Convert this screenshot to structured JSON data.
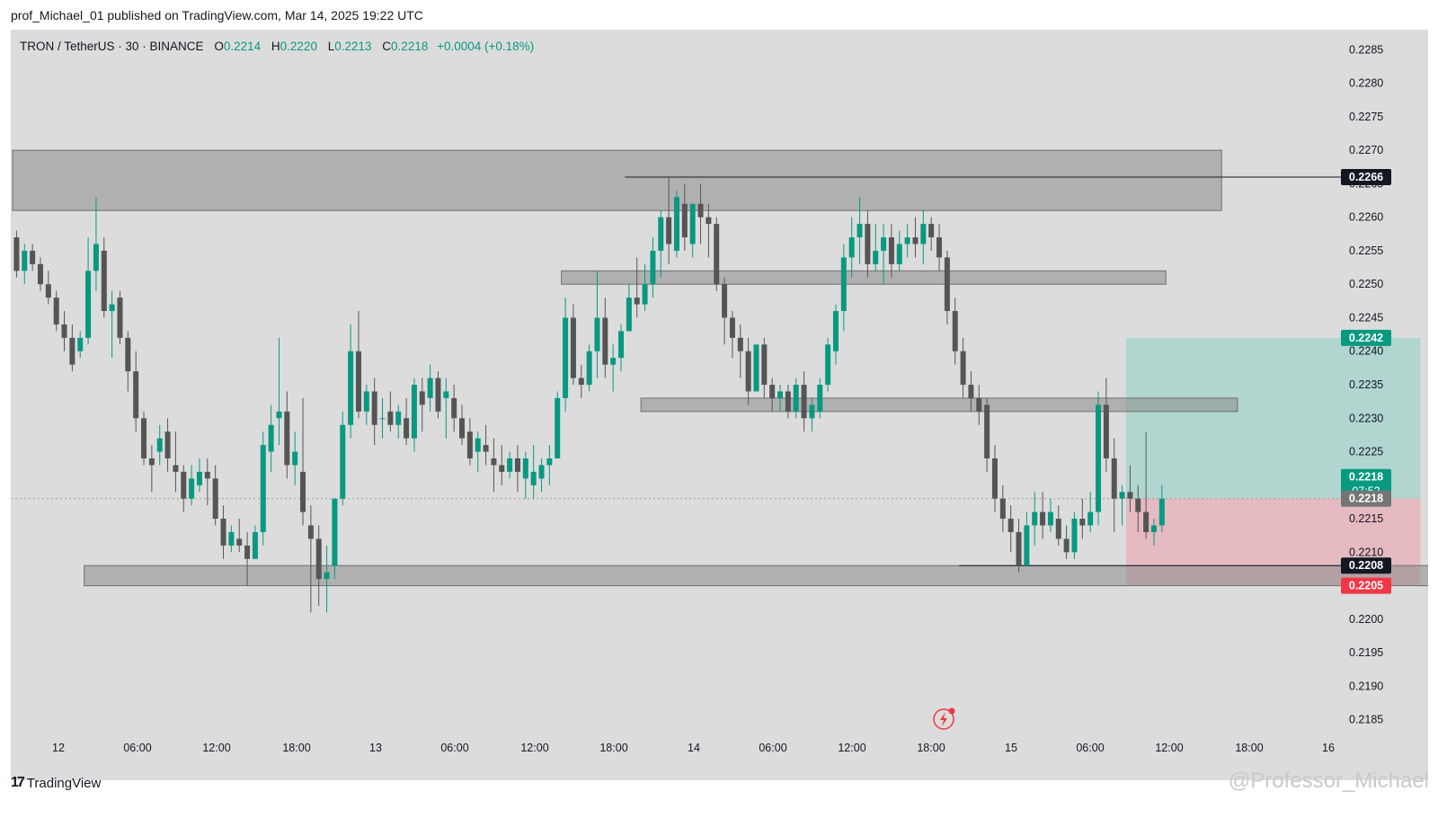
{
  "header": {
    "text": "prof_Michael_01 published on TradingView.com, Mar 14, 2025 19:22 UTC"
  },
  "legend": {
    "symbol": "TRON / TetherUS · 30 · BINANCE",
    "o_label": "O",
    "o": "0.2214",
    "h_label": "H",
    "h": "0.2220",
    "l_label": "L",
    "l": "0.2213",
    "c_label": "C",
    "c": "0.2218",
    "change": "+0.0004 (+0.18%)"
  },
  "footer": {
    "logo_mark": "17",
    "logo_text": "TradingView",
    "watermark": "@Professor_Michael"
  },
  "colors": {
    "up": "#089981",
    "down": "#555555",
    "zone": "#8c8c8c",
    "profit": "#a8d5cc",
    "loss": "#e6b4bb",
    "bg": "#dcdcdc"
  },
  "chart_data": {
    "type": "candlestick",
    "ylim": [
      0.2182,
      0.2288
    ],
    "yticks": [
      "0.2285",
      "0.2280",
      "0.2275",
      "0.2270",
      "0.2265",
      "0.2260",
      "0.2255",
      "0.2250",
      "0.2245",
      "0.2240",
      "0.2235",
      "0.2230",
      "0.2225",
      "0.2220",
      "0.2215",
      "0.2210",
      "0.2205",
      "0.2200",
      "0.2195",
      "0.2190",
      "0.2185"
    ],
    "xticks": [
      "12",
      "06:00",
      "12:00",
      "18:00",
      "13",
      "06:00",
      "12:00",
      "18:00",
      "14",
      "06:00",
      "12:00",
      "18:00",
      "15",
      "06:00",
      "12:00",
      "18:00",
      "16"
    ],
    "bar_interval": "30",
    "candles": [
      [
        0.2257,
        0.2258,
        0.2251,
        0.2252
      ],
      [
        0.2252,
        0.2256,
        0.225,
        0.2255
      ],
      [
        0.2255,
        0.2256,
        0.2252,
        0.2253
      ],
      [
        0.2253,
        0.2254,
        0.2249,
        0.225
      ],
      [
        0.225,
        0.2252,
        0.2247,
        0.2248
      ],
      [
        0.2248,
        0.2249,
        0.2243,
        0.2244
      ],
      [
        0.2244,
        0.2246,
        0.224,
        0.2242
      ],
      [
        0.2242,
        0.2244,
        0.2237,
        0.2238
      ],
      [
        0.224,
        0.2243,
        0.2239,
        0.2242
      ],
      [
        0.2242,
        0.2257,
        0.2241,
        0.2252
      ],
      [
        0.2252,
        0.2263,
        0.2249,
        0.2256
      ],
      [
        0.2255,
        0.2257,
        0.2245,
        0.2246
      ],
      [
        0.2246,
        0.2249,
        0.2239,
        0.2247
      ],
      [
        0.2248,
        0.2249,
        0.2241,
        0.2242
      ],
      [
        0.2242,
        0.2243,
        0.2234,
        0.2237
      ],
      [
        0.2237,
        0.224,
        0.2228,
        0.223
      ],
      [
        0.223,
        0.2231,
        0.2223,
        0.2224
      ],
      [
        0.2224,
        0.2226,
        0.2219,
        0.2223
      ],
      [
        0.2225,
        0.2229,
        0.2223,
        0.2227
      ],
      [
        0.2228,
        0.223,
        0.2222,
        0.2224
      ],
      [
        0.2223,
        0.2228,
        0.2219,
        0.2222
      ],
      [
        0.2222,
        0.2223,
        0.2216,
        0.2218
      ],
      [
        0.2218,
        0.2223,
        0.2217,
        0.2221
      ],
      [
        0.222,
        0.2224,
        0.2219,
        0.2222
      ],
      [
        0.2222,
        0.2224,
        0.2217,
        0.2221
      ],
      [
        0.2221,
        0.2223,
        0.2214,
        0.2215
      ],
      [
        0.2215,
        0.2217,
        0.2209,
        0.2211
      ],
      [
        0.2211,
        0.2214,
        0.221,
        0.2213
      ],
      [
        0.2212,
        0.2215,
        0.221,
        0.2211
      ],
      [
        0.2211,
        0.2213,
        0.2205,
        0.2209
      ],
      [
        0.2209,
        0.2214,
        0.2209,
        0.2213
      ],
      [
        0.2213,
        0.2228,
        0.2211,
        0.2226
      ],
      [
        0.2225,
        0.2232,
        0.2222,
        0.2229
      ],
      [
        0.223,
        0.2242,
        0.2226,
        0.2231
      ],
      [
        0.2231,
        0.2234,
        0.2221,
        0.2223
      ],
      [
        0.2223,
        0.2228,
        0.222,
        0.2225
      ],
      [
        0.2222,
        0.2233,
        0.2214,
        0.2216
      ],
      [
        0.2214,
        0.2217,
        0.2201,
        0.2212
      ],
      [
        0.2212,
        0.2214,
        0.2202,
        0.2206
      ],
      [
        0.2206,
        0.2211,
        0.2201,
        0.2207
      ],
      [
        0.2208,
        0.2218,
        0.2206,
        0.2218
      ],
      [
        0.2218,
        0.2231,
        0.2217,
        0.2229
      ],
      [
        0.2229,
        0.2244,
        0.2227,
        0.224
      ],
      [
        0.224,
        0.2246,
        0.223,
        0.2231
      ],
      [
        0.2231,
        0.2235,
        0.2229,
        0.2234
      ],
      [
        0.2234,
        0.2236,
        0.2226,
        0.2229
      ],
      [
        0.223,
        0.2233,
        0.2227,
        0.223
      ],
      [
        0.2231,
        0.2234,
        0.2228,
        0.2229
      ],
      [
        0.2229,
        0.2232,
        0.2227,
        0.2231
      ],
      [
        0.223,
        0.2233,
        0.2226,
        0.2227
      ],
      [
        0.2227,
        0.2236,
        0.2225,
        0.2235
      ],
      [
        0.2234,
        0.2236,
        0.2228,
        0.2232
      ],
      [
        0.2233,
        0.2238,
        0.2231,
        0.2236
      ],
      [
        0.2236,
        0.2237,
        0.223,
        0.2231
      ],
      [
        0.2233,
        0.2236,
        0.2227,
        0.2234
      ],
      [
        0.2233,
        0.2235,
        0.2228,
        0.223
      ],
      [
        0.223,
        0.2232,
        0.2226,
        0.2227
      ],
      [
        0.2228,
        0.223,
        0.2223,
        0.2224
      ],
      [
        0.2225,
        0.2228,
        0.2222,
        0.2227
      ],
      [
        0.2226,
        0.2229,
        0.2223,
        0.2225
      ],
      [
        0.2224,
        0.2227,
        0.2219,
        0.2223
      ],
      [
        0.2223,
        0.2226,
        0.222,
        0.2222
      ],
      [
        0.2222,
        0.2225,
        0.2221,
        0.2224
      ],
      [
        0.2224,
        0.2226,
        0.2219,
        0.2222
      ],
      [
        0.2221,
        0.2225,
        0.2218,
        0.2224
      ],
      [
        0.222,
        0.2226,
        0.2218,
        0.2222
      ],
      [
        0.2221,
        0.2224,
        0.2219,
        0.2223
      ],
      [
        0.2223,
        0.2226,
        0.222,
        0.2224
      ],
      [
        0.2224,
        0.2234,
        0.2224,
        0.2233
      ],
      [
        0.2233,
        0.2248,
        0.2231,
        0.2245
      ],
      [
        0.2245,
        0.2247,
        0.2235,
        0.2236
      ],
      [
        0.2236,
        0.2238,
        0.2233,
        0.2235
      ],
      [
        0.2235,
        0.2241,
        0.2234,
        0.224
      ],
      [
        0.224,
        0.2252,
        0.2236,
        0.2245
      ],
      [
        0.2245,
        0.2248,
        0.2236,
        0.2238
      ],
      [
        0.2238,
        0.2241,
        0.2234,
        0.2239
      ],
      [
        0.2239,
        0.2244,
        0.2237,
        0.2243
      ],
      [
        0.2243,
        0.225,
        0.2243,
        0.2248
      ],
      [
        0.2248,
        0.2254,
        0.2245,
        0.2247
      ],
      [
        0.2247,
        0.2253,
        0.2246,
        0.225
      ],
      [
        0.225,
        0.2257,
        0.2248,
        0.2255
      ],
      [
        0.2255,
        0.2261,
        0.2251,
        0.226
      ],
      [
        0.226,
        0.2266,
        0.2253,
        0.2256
      ],
      [
        0.2255,
        0.2264,
        0.2254,
        0.2263
      ],
      [
        0.2262,
        0.2265,
        0.2255,
        0.2257
      ],
      [
        0.2256,
        0.2262,
        0.2254,
        0.2262
      ],
      [
        0.2262,
        0.2265,
        0.2256,
        0.226
      ],
      [
        0.226,
        0.2262,
        0.2254,
        0.2259
      ],
      [
        0.2259,
        0.226,
        0.2249,
        0.225
      ],
      [
        0.225,
        0.2251,
        0.2241,
        0.2245
      ],
      [
        0.2245,
        0.2246,
        0.2239,
        0.2242
      ],
      [
        0.2242,
        0.2244,
        0.2236,
        0.224
      ],
      [
        0.224,
        0.2242,
        0.2232,
        0.2234
      ],
      [
        0.2234,
        0.2241,
        0.2234,
        0.2241
      ],
      [
        0.2241,
        0.2242,
        0.2233,
        0.2235
      ],
      [
        0.2235,
        0.2236,
        0.2231,
        0.2233
      ],
      [
        0.2233,
        0.2235,
        0.2231,
        0.2234
      ],
      [
        0.2234,
        0.2235,
        0.223,
        0.2231
      ],
      [
        0.2231,
        0.2236,
        0.223,
        0.2235
      ],
      [
        0.2235,
        0.2237,
        0.2228,
        0.223
      ],
      [
        0.223,
        0.2233,
        0.2228,
        0.2232
      ],
      [
        0.2231,
        0.2236,
        0.223,
        0.2235
      ],
      [
        0.2235,
        0.2242,
        0.2234,
        0.2241
      ],
      [
        0.224,
        0.2247,
        0.2238,
        0.2246
      ],
      [
        0.2246,
        0.2256,
        0.2243,
        0.2254
      ],
      [
        0.2254,
        0.226,
        0.2251,
        0.2257
      ],
      [
        0.2257,
        0.2263,
        0.2253,
        0.2259
      ],
      [
        0.2259,
        0.2261,
        0.2251,
        0.2253
      ],
      [
        0.2253,
        0.2259,
        0.2252,
        0.2255
      ],
      [
        0.2255,
        0.2259,
        0.225,
        0.2257
      ],
      [
        0.2257,
        0.2259,
        0.2251,
        0.2253
      ],
      [
        0.2253,
        0.2258,
        0.2252,
        0.2256
      ],
      [
        0.2256,
        0.2259,
        0.2254,
        0.2257
      ],
      [
        0.2257,
        0.226,
        0.2254,
        0.2256
      ],
      [
        0.2256,
        0.2261,
        0.2253,
        0.2259
      ],
      [
        0.2259,
        0.226,
        0.2255,
        0.2257
      ],
      [
        0.2257,
        0.2259,
        0.2252,
        0.2254
      ],
      [
        0.2254,
        0.2255,
        0.2244,
        0.2246
      ],
      [
        0.2246,
        0.2248,
        0.2238,
        0.224
      ],
      [
        0.224,
        0.2242,
        0.2233,
        0.2235
      ],
      [
        0.2235,
        0.2237,
        0.2231,
        0.2233
      ],
      [
        0.2233,
        0.2235,
        0.2229,
        0.2231
      ],
      [
        0.2232,
        0.2233,
        0.2222,
        0.2224
      ],
      [
        0.2224,
        0.2226,
        0.2216,
        0.2218
      ],
      [
        0.2218,
        0.222,
        0.2213,
        0.2215
      ],
      [
        0.2215,
        0.2217,
        0.221,
        0.2213
      ],
      [
        0.2213,
        0.2215,
        0.2207,
        0.2208
      ],
      [
        0.2208,
        0.2216,
        0.2208,
        0.2214
      ],
      [
        0.2214,
        0.2219,
        0.2211,
        0.2216
      ],
      [
        0.2216,
        0.2219,
        0.2212,
        0.2214
      ],
      [
        0.2214,
        0.2218,
        0.2213,
        0.2216
      ],
      [
        0.2215,
        0.2217,
        0.2211,
        0.2212
      ],
      [
        0.2212,
        0.2214,
        0.2209,
        0.221
      ],
      [
        0.221,
        0.2216,
        0.2209,
        0.2215
      ],
      [
        0.2215,
        0.2218,
        0.2212,
        0.2214
      ],
      [
        0.2214,
        0.2219,
        0.2213,
        0.2216
      ],
      [
        0.2216,
        0.2234,
        0.2214,
        0.2232
      ],
      [
        0.2232,
        0.2236,
        0.2222,
        0.2224
      ],
      [
        0.2224,
        0.2227,
        0.2213,
        0.2218
      ],
      [
        0.2218,
        0.222,
        0.2214,
        0.2219
      ],
      [
        0.2219,
        0.2223,
        0.2216,
        0.2218
      ],
      [
        0.2218,
        0.222,
        0.2213,
        0.2216
      ],
      [
        0.2216,
        0.2228,
        0.2212,
        0.2213
      ],
      [
        0.2213,
        0.2215,
        0.2211,
        0.2214
      ],
      [
        0.2214,
        0.222,
        0.2213,
        0.2218
      ]
    ],
    "zones": [
      {
        "name": "upper-supply-zone",
        "from": 0.2261,
        "to": 0.227,
        "x0": 0,
        "x1": 152
      },
      {
        "name": "resistance-zone",
        "from": 0.225,
        "to": 0.2252,
        "x0": 69,
        "x1": 145
      },
      {
        "name": "mid-zone",
        "from": 0.2231,
        "to": 0.2233,
        "x0": 79,
        "x1": 154
      },
      {
        "name": "demand-zone",
        "from": 0.2205,
        "to": 0.2208,
        "x0": 9,
        "x1": 199
      }
    ],
    "hlines": [
      {
        "value": 0.2266,
        "from": 77,
        "to": 220
      },
      {
        "value": 0.2208,
        "from": 119,
        "to": 175
      }
    ],
    "position": {
      "entry": 0.2218,
      "target": 0.2242,
      "stop": 0.2205,
      "from": 140,
      "to": 177
    },
    "price_labels": [
      {
        "text": "0.2266",
        "value": 0.2266,
        "bg": "#131722",
        "fg": "#ffffff"
      },
      {
        "text": "0.2242",
        "value": 0.2242,
        "bg": "#089981",
        "fg": "#ffffff"
      },
      {
        "text": "0.2218",
        "value": 0.2218,
        "bg": "#089981",
        "fg": "#ffffff",
        "sub": "07:52"
      },
      {
        "text": "0.2218",
        "value": 0.2218,
        "bg": "#757575",
        "fg": "#ffffff"
      },
      {
        "text": "0.2208",
        "value": 0.2208,
        "bg": "#131722",
        "fg": "#ffffff"
      },
      {
        "text": "0.2205",
        "value": 0.2205,
        "bg": "#f23645",
        "fg": "#ffffff"
      }
    ]
  }
}
